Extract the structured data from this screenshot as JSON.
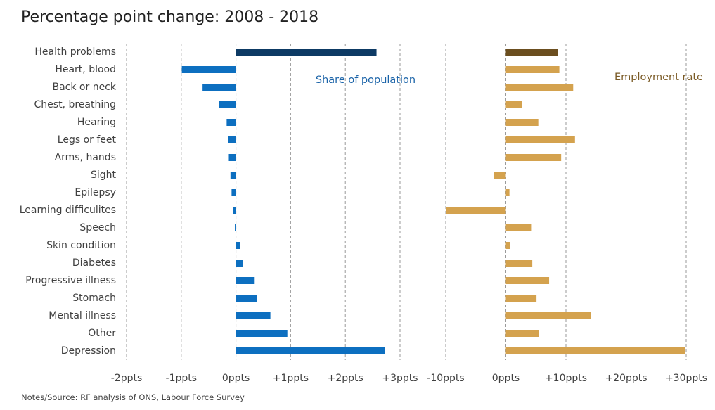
{
  "title": "Percentage point change: 2008 - 2018",
  "notes": "Notes/Source: RF analysis of ONS, Labour Force Survey",
  "colors": {
    "share_highlight": "#0d3a64",
    "share": "#0d6fc0",
    "employment_highlight": "#6b4e1f",
    "employment": "#d4a24e",
    "grid": "#9a9a9a"
  },
  "chart_data": {
    "type": "bar",
    "orientation": "horizontal",
    "categories": [
      "Health problems",
      "Heart, blood",
      "Back or neck",
      "Chest, breathing",
      "Hearing",
      "Legs or feet",
      "Arms, hands",
      "Sight",
      "Epilepsy",
      "Learning difficulites",
      "Speech",
      "Skin condition",
      "Diabetes",
      "Progressive illness",
      "Stomach",
      "Mental illness",
      "Other",
      "Depression"
    ],
    "series": [
      {
        "name": "Share of population",
        "values": [
          2.57,
          -0.99,
          -0.61,
          -0.31,
          -0.17,
          -0.14,
          -0.13,
          -0.1,
          -0.08,
          -0.05,
          -0.02,
          0.08,
          0.13,
          0.33,
          0.39,
          0.63,
          0.94,
          2.73
        ],
        "xlim": [
          -2,
          3
        ],
        "ticks": [
          -2,
          -1,
          0,
          1,
          2,
          3
        ],
        "tick_labels": [
          "-2ppts",
          "-1ppts",
          "0ppts",
          "+1ppts",
          "+2ppts",
          "+3ppts"
        ]
      },
      {
        "name": "Employment rate",
        "values": [
          8.6,
          8.9,
          11.2,
          2.7,
          5.4,
          11.5,
          9.2,
          -2.0,
          0.6,
          -10.0,
          4.2,
          0.7,
          4.4,
          7.2,
          5.1,
          14.2,
          5.5,
          29.8
        ],
        "xlim": [
          -10,
          30
        ],
        "ticks": [
          -10,
          0,
          10,
          20,
          30
        ],
        "tick_labels": [
          "-10ppts",
          "0ppts",
          "+10ppts",
          "+20ppts",
          "+30ppts"
        ]
      }
    ],
    "highlight_category": "Health problems",
    "grid": true
  }
}
